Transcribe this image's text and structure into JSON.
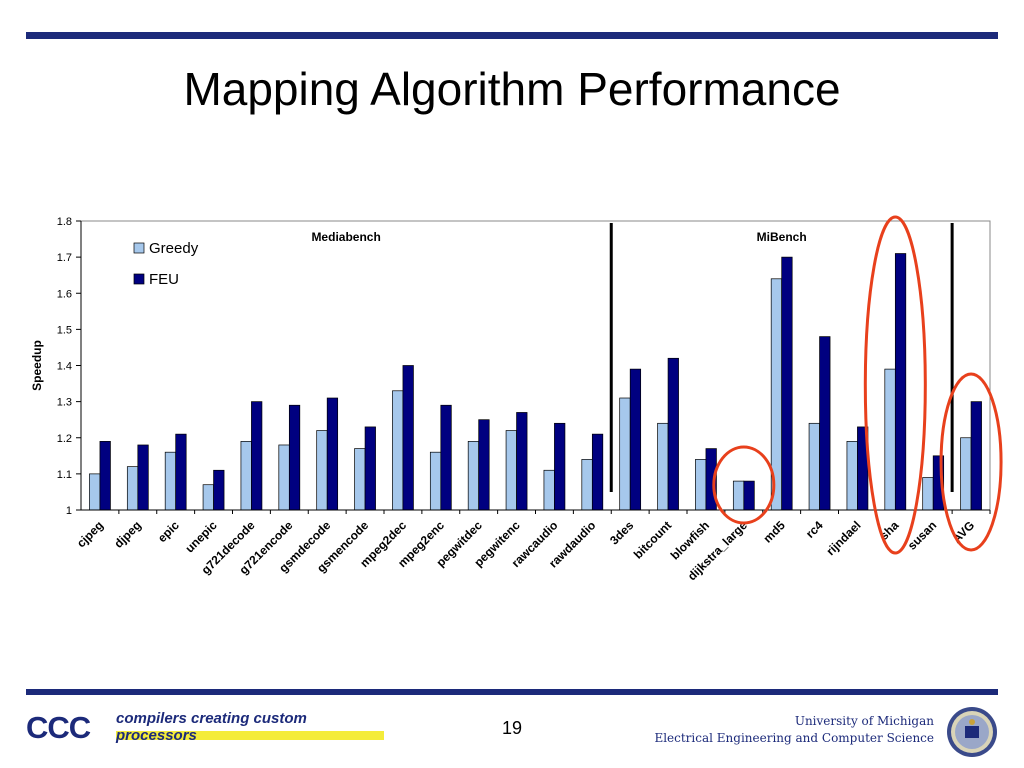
{
  "slide": {
    "title": "Mapping Algorithm Performance",
    "page_number": "19",
    "logo_text": "CCC",
    "tagline": "compilers creating custom processors",
    "university_line1": "University of Michigan",
    "university_line2": "Electrical Engineering and Computer Science"
  },
  "colors": {
    "rule": "#1c2a7a",
    "greedy": "#a6c8ec",
    "feu": "#000080",
    "highlight": "#e8401c",
    "tagline_bar": "#f4ec3a"
  },
  "chart_data": {
    "type": "bar",
    "title": "",
    "xlabel": "",
    "ylabel": "Speedup",
    "ylim": [
      1,
      1.8
    ],
    "yticks": [
      "1",
      "1.1",
      "1.2",
      "1.3",
      "1.4",
      "1.5",
      "1.6",
      "1.7",
      "1.8"
    ],
    "grid": false,
    "legend_position": "top-left",
    "categories": [
      "cjpeg",
      "djpeg",
      "epic",
      "unepic",
      "g721decode",
      "g721encode",
      "gsmdecode",
      "gsmencode",
      "mpeg2dec",
      "mpeg2enc",
      "pegwitdec",
      "pegwitenc",
      "rawcaudio",
      "rawdaudio",
      "3des",
      "bitcount",
      "blowfish",
      "dijkstra_large",
      "md5",
      "rc4",
      "rijndael",
      "sha",
      "susan",
      "AVG"
    ],
    "series": [
      {
        "name": "Greedy",
        "values": [
          1.1,
          1.12,
          1.16,
          1.07,
          1.19,
          1.18,
          1.22,
          1.17,
          1.33,
          1.16,
          1.19,
          1.22,
          1.11,
          1.14,
          1.31,
          1.24,
          1.14,
          1.08,
          1.64,
          1.24,
          1.19,
          1.39,
          1.09,
          1.2
        ]
      },
      {
        "name": "FEU",
        "values": [
          1.19,
          1.18,
          1.21,
          1.11,
          1.3,
          1.29,
          1.31,
          1.23,
          1.4,
          1.29,
          1.25,
          1.27,
          1.24,
          1.21,
          1.39,
          1.42,
          1.17,
          1.08,
          1.7,
          1.48,
          1.23,
          1.71,
          1.15,
          1.3
        ]
      }
    ],
    "annotations": [
      {
        "text": "Mediabench",
        "spans": [
          "cjpeg",
          "rawdaudio"
        ]
      },
      {
        "text": "MiBench",
        "spans": [
          "3des",
          "susan"
        ]
      }
    ],
    "dividers_after": [
      "rawdaudio",
      "susan"
    ],
    "highlighted_categories": [
      "dijkstra_large",
      "sha",
      "AVG"
    ]
  }
}
